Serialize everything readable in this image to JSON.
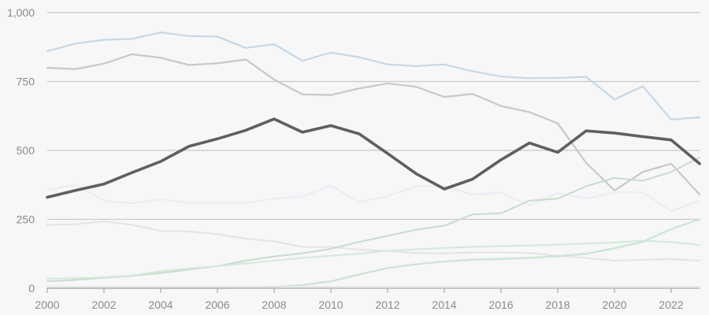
{
  "chart_data": {
    "type": "line",
    "title": "",
    "xlabel": "",
    "ylabel": "",
    "x": [
      2000,
      2001,
      2002,
      2003,
      2004,
      2005,
      2006,
      2007,
      2008,
      2009,
      2010,
      2011,
      2012,
      2013,
      2014,
      2015,
      2016,
      2017,
      2018,
      2019,
      2020,
      2021,
      2022,
      2023
    ],
    "xlim": [
      2000,
      2023
    ],
    "ylim": [
      0,
      1000
    ],
    "y_ticks": [
      0,
      250,
      500,
      750,
      1000
    ],
    "y_tick_labels": [
      "0",
      "250",
      "500",
      "750",
      "1,000"
    ],
    "x_ticks": [
      2000,
      2002,
      2004,
      2006,
      2008,
      2010,
      2012,
      2014,
      2016,
      2018,
      2020,
      2022
    ],
    "x_tick_labels": [
      "2000",
      "2002",
      "2004",
      "2006",
      "2008",
      "2010",
      "2012",
      "2014",
      "2016",
      "2018",
      "2020",
      "2022"
    ],
    "grid": true,
    "legend": "none",
    "series": [
      {
        "color": "#c5d8e8",
        "width": 2.2,
        "values": [
          860,
          888,
          901,
          905,
          928,
          915,
          913,
          872,
          885,
          825,
          855,
          838,
          812,
          806,
          812,
          787,
          768,
          762,
          763,
          767,
          685,
          733,
          612,
          620
        ]
      },
      {
        "color": "#c8c8c8",
        "width": 2.2,
        "values": [
          800,
          795,
          815,
          849,
          836,
          810,
          816,
          830,
          757,
          703,
          701,
          725,
          743,
          731,
          694,
          705,
          661,
          639,
          598,
          455,
          355,
          422,
          452,
          340
        ]
      },
      {
        "color": "#e6eef5",
        "width": 2,
        "values": [
          358,
          375,
          318,
          308,
          323,
          310,
          310,
          310,
          325,
          333,
          372,
          312,
          335,
          370,
          370,
          340,
          348,
          300,
          345,
          325,
          348,
          348,
          280,
          318
        ]
      },
      {
        "color": "#e3e3e3",
        "width": 2,
        "values": [
          230,
          232,
          243,
          230,
          208,
          206,
          196,
          180,
          170,
          150,
          150,
          140,
          135,
          128,
          126,
          130,
          130,
          128,
          118,
          110,
          100,
          103,
          106,
          100
        ]
      },
      {
        "color": "#c6dccc",
        "width": 2,
        "values": [
          25,
          30,
          38,
          45,
          55,
          68,
          80,
          100,
          115,
          127,
          143,
          168,
          190,
          212,
          227,
          268,
          272,
          318,
          325,
          370,
          400,
          390,
          422,
          474
        ]
      },
      {
        "color": "#d2e9db",
        "width": 2,
        "values": [
          35,
          36,
          40,
          46,
          62,
          72,
          80,
          90,
          100,
          110,
          118,
          125,
          136,
          141,
          146,
          150,
          153,
          155,
          158,
          162,
          166,
          172,
          168,
          157
        ]
      },
      {
        "color": "#c8e6d3",
        "width": 2.2,
        "values": [
          0,
          0,
          0,
          0,
          0,
          0,
          0,
          2,
          5,
          12,
          25,
          50,
          73,
          87,
          97,
          104,
          106,
          110,
          116,
          125,
          145,
          168,
          215,
          250
        ]
      },
      {
        "color": "#e6e6e6",
        "width": 1.5,
        "values": [
          6,
          6,
          6,
          6,
          6,
          6,
          6,
          6,
          6,
          6,
          6,
          6,
          6,
          6,
          6,
          6,
          6,
          6,
          6,
          6,
          6,
          6,
          6,
          6
        ]
      },
      {
        "color": "#5f5f5f",
        "width": 3.6,
        "values": [
          330,
          355,
          378,
          420,
          460,
          515,
          542,
          573,
          614,
          566,
          590,
          560,
          489,
          416,
          360,
          396,
          466,
          527,
          493,
          571,
          563,
          550,
          538,
          452
        ]
      }
    ]
  }
}
